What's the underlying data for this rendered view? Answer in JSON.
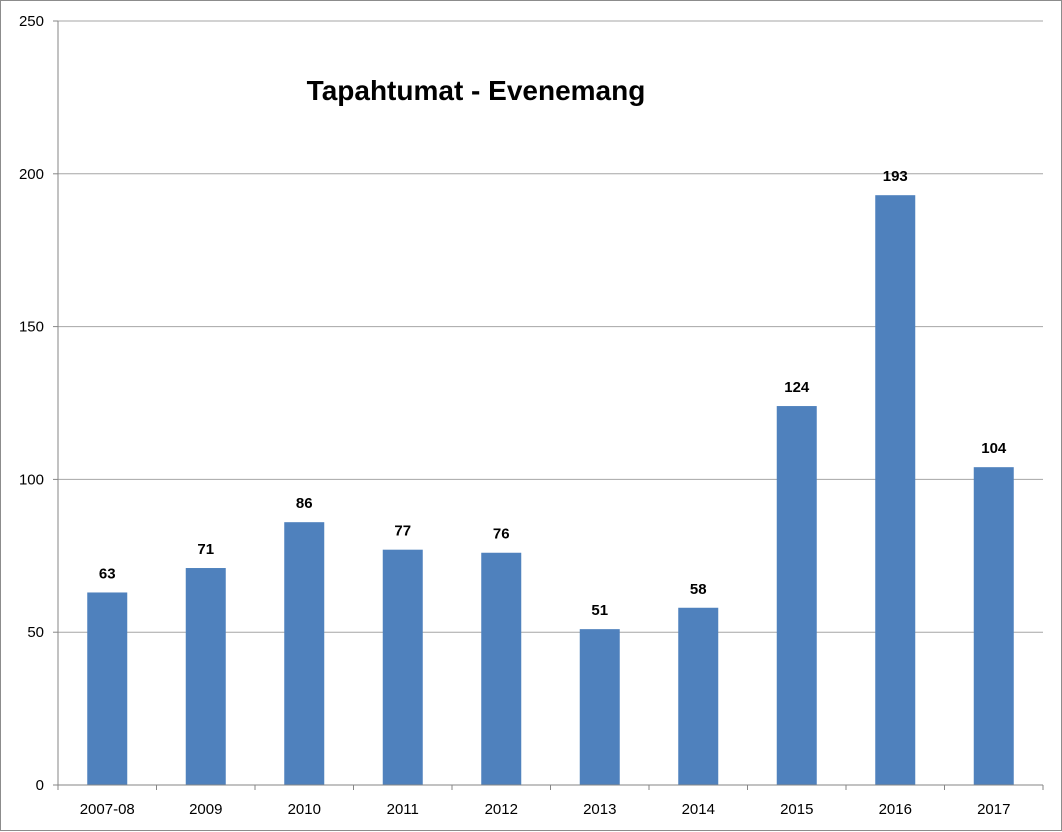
{
  "chart_data": {
    "type": "bar",
    "title": "Tapahtumat - Evenemang",
    "xlabel": "",
    "ylabel": "",
    "categories": [
      "2007-08",
      "2009",
      "2010",
      "2011",
      "2012",
      "2013",
      "2014",
      "2015",
      "2016",
      "2017"
    ],
    "values": [
      63,
      71,
      86,
      77,
      76,
      51,
      58,
      124,
      193,
      104
    ],
    "ylim": [
      0,
      250
    ],
    "yticks": [
      0,
      50,
      100,
      150,
      200,
      250
    ],
    "grid": true,
    "legend": "none",
    "bar_color": "#4f81bd",
    "gridline_color": "#a6a6a6",
    "axis_color": "#868686"
  }
}
